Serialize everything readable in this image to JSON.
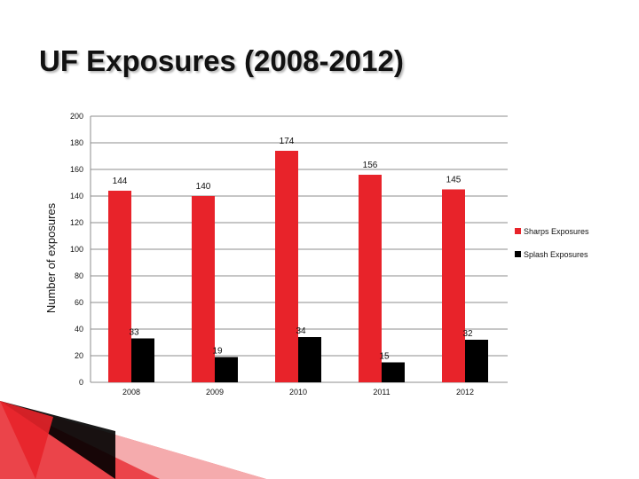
{
  "slide": {
    "title": "UF Exposures (2008-2012)"
  },
  "chart_data": {
    "type": "bar",
    "title": "UF Exposures (2008-2012)",
    "xlabel": "",
    "ylabel": "Number of exposures",
    "categories": [
      "2008",
      "2009",
      "2010",
      "2011",
      "2012"
    ],
    "series": [
      {
        "name": "Sharps Exposures",
        "values": [
          144,
          140,
          174,
          156,
          145
        ],
        "color": "#e8232a"
      },
      {
        "name": "Splash Exposures",
        "values": [
          33,
          19,
          34,
          15,
          32
        ],
        "color": "#000000"
      }
    ],
    "ylim": [
      0,
      200
    ],
    "yticks": [
      0,
      20,
      40,
      60,
      80,
      100,
      120,
      140,
      160,
      180,
      200
    ],
    "grid": true,
    "legend": "right"
  }
}
